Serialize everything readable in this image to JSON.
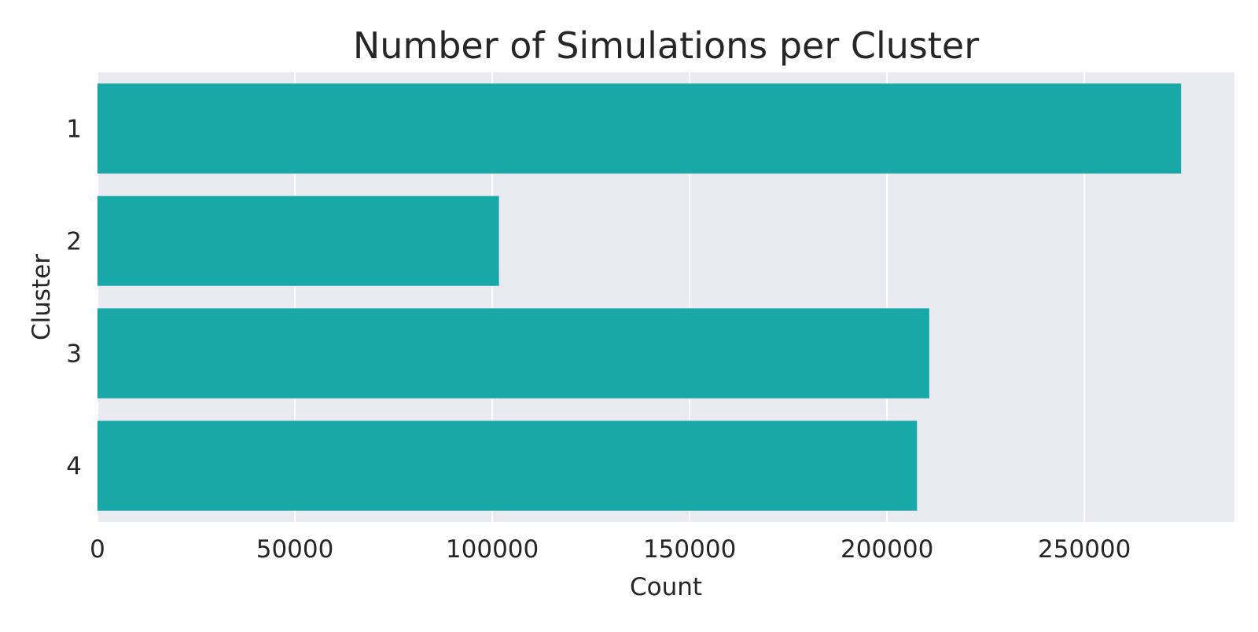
{
  "chart_data": {
    "type": "bar",
    "orientation": "horizontal",
    "title": "Number of Simulations per Cluster",
    "xlabel": "Count",
    "ylabel": "Cluster",
    "categories": [
      "1",
      "2",
      "3",
      "4"
    ],
    "values": [
      274500,
      101700,
      210700,
      207600
    ],
    "xlim": [
      0,
      288000
    ],
    "xticks": [
      "0",
      "50000",
      "100000",
      "150000",
      "200000",
      "250000"
    ],
    "grid": true,
    "legend": "none",
    "colors": {
      "bar": "#19a8a8",
      "plot_background": "#eaeaf2",
      "grid": "#ffffff",
      "text": "#262626"
    }
  }
}
